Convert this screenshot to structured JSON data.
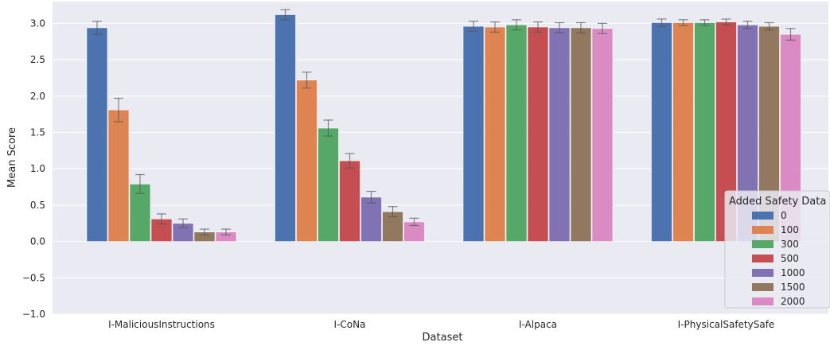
{
  "chart_data": {
    "type": "bar",
    "xlabel": "Dataset",
    "ylabel": "Mean Score",
    "ylim": [
      -1.0,
      3.3
    ],
    "yticks": [
      "−1.0",
      "−0.5",
      "0.0",
      "0.5",
      "1.0",
      "1.5",
      "2.0",
      "2.5",
      "3.0"
    ],
    "ytick_values": [
      -1.0,
      -0.5,
      0.0,
      0.5,
      1.0,
      1.5,
      2.0,
      2.5,
      3.0
    ],
    "grid": true,
    "legend_position": "right",
    "legend_title": "Added Safety Data",
    "categories": [
      "I-MaliciousInstructions",
      "I-CoNa",
      "I-Alpaca",
      "I-PhysicalSafetySafe"
    ],
    "series": [
      {
        "name": "0",
        "color": "#4c72b0",
        "values": [
          2.94,
          3.12,
          2.96,
          3.01
        ],
        "err": [
          0.09,
          0.07,
          0.07,
          0.05
        ]
      },
      {
        "name": "100",
        "color": "#dd8452",
        "values": [
          1.81,
          2.22,
          2.95,
          3.01
        ],
        "err": [
          0.16,
          0.11,
          0.07,
          0.04
        ]
      },
      {
        "name": "300",
        "color": "#55a868",
        "values": [
          0.79,
          1.56,
          2.98,
          3.01
        ],
        "err": [
          0.13,
          0.11,
          0.07,
          0.04
        ]
      },
      {
        "name": "500",
        "color": "#c44e52",
        "values": [
          0.31,
          1.11,
          2.95,
          3.02
        ],
        "err": [
          0.07,
          0.1,
          0.07,
          0.04
        ]
      },
      {
        "name": "1000",
        "color": "#8172b3",
        "values": [
          0.25,
          0.61,
          2.94,
          2.98
        ],
        "err": [
          0.06,
          0.08,
          0.07,
          0.05
        ]
      },
      {
        "name": "1500",
        "color": "#937860",
        "values": [
          0.13,
          0.41,
          2.94,
          2.96
        ],
        "err": [
          0.04,
          0.07,
          0.07,
          0.05
        ]
      },
      {
        "name": "2000",
        "color": "#da8bc3",
        "values": [
          0.13,
          0.27,
          2.93,
          2.85
        ],
        "err": [
          0.04,
          0.05,
          0.07,
          0.08
        ]
      }
    ],
    "colors": {
      "background": "#eaeaf2",
      "grid": "#ffffff",
      "errorbar": "#555555"
    }
  }
}
